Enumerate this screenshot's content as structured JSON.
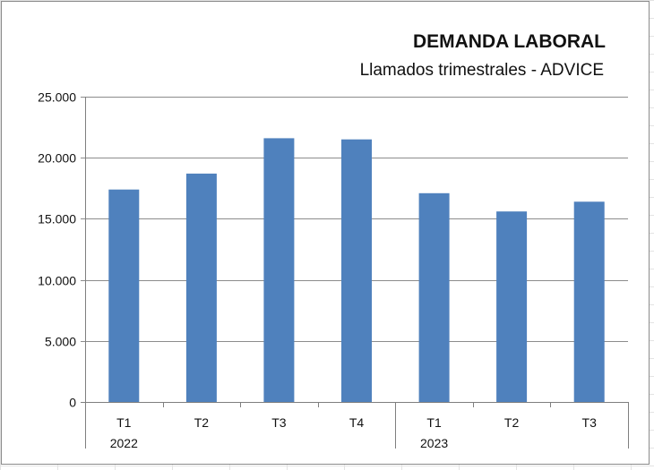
{
  "chart_data": {
    "type": "bar",
    "title": "DEMANDA LABORAL",
    "subtitle": "Llamados trimestrales - ADVICE",
    "categories": [
      "T1",
      "T2",
      "T3",
      "T4",
      "T1",
      "T2",
      "T3"
    ],
    "year_labels": [
      "2022",
      "",
      "",
      "",
      "2023",
      "",
      ""
    ],
    "values": [
      17400,
      18700,
      21600,
      21500,
      17100,
      15600,
      16400
    ],
    "ylim": [
      0,
      25000
    ],
    "yticks": [
      0,
      5000,
      10000,
      15000,
      20000,
      25000
    ],
    "ytick_labels": [
      "0",
      "5.000",
      "10.000",
      "15.000",
      "20.000",
      "25.000"
    ],
    "xlabel": "",
    "ylabel": "",
    "grid": true,
    "legend": "none",
    "bar_color": "#4F81BD",
    "gridline_color": "#8c8c8c"
  }
}
